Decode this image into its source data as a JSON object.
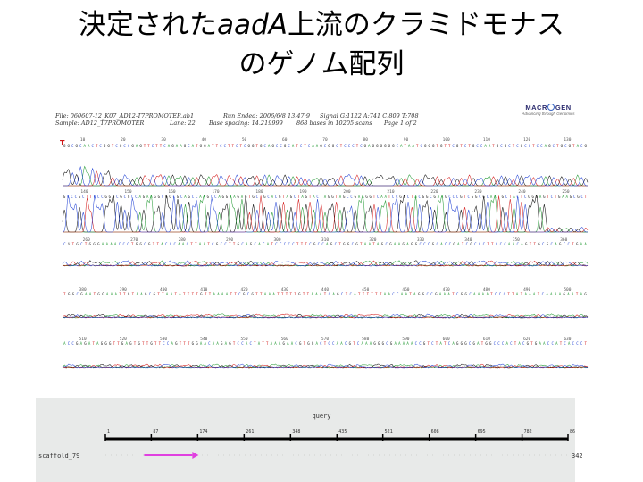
{
  "slide": {
    "title_part1": "決定された",
    "title_italic": "aadA",
    "title_part2": "上流のクラミドモナス",
    "title_line2": "のゲノム配列"
  },
  "trace": {
    "file_line": "File: 060607-12_K07_AD12-T7PROMOTER.ab1",
    "run_line": "Run Ended: 2006/6/8 13:47:9",
    "signal_line": "Signal G:1122 A:741 C:809 T:708",
    "sample_line": "Sample: AD12_T7PROMOTER",
    "lane_line": "Lane: 22",
    "spacing_line": "Base spacing: 14.219999",
    "bases_line": "868 bases in 10205 scans",
    "page_line": "Page 1 of 2",
    "logo_text": "MACROGEN",
    "logo_tagline": "Advancing through Genomics",
    "strand": "T",
    "rows": [
      {
        "seq": "GGCGCAACTCGGTCGCCGAGTTCTTCAGAAGCATGGATTCCTTCTCGGTGCAGCCGCATCTCAAGCGGCTCCCTCGAGGGGGGCATAATCGGGTGTTCGTCTGCCAATGCGCTCGCCTCCAGCTGCGTACG",
        "ticks": [
          "10",
          "20",
          "30",
          "40",
          "50",
          "60",
          "70",
          "80",
          "90",
          "100",
          "110",
          "120",
          "130"
        ]
      },
      {
        "seq": "GCCCGCTTCCCGGGCGCGCCAGAAGGCGGCGCAGCCAAGCCAGGAAGAGTGCTGCACGTAGCTAGTACTAGGTAGCCGAAGGTCAATCCGGCTACGGCGAAGCCCGTCGGCGCAATGCTACTCGGGAGTCTGAAGCGCT",
        "ticks": [
          "140",
          "150",
          "160",
          "170",
          "180",
          "190",
          "200",
          "210",
          "220",
          "230",
          "240",
          "250"
        ]
      },
      {
        "seq": "CNTGCTGGGAAAACCCTGGCGTTACCCAACTTAATCGCCTTGCAGCACATCCCCCTTTCGCCAGCTGGCGTAATAGCGAAGAGGCCCGCACCGATCGCCCTTCCCAACAGTTGCGCAGCCTGAA",
        "ticks": [
          "260",
          "270",
          "280",
          "290",
          "300",
          "310",
          "320",
          "330",
          "340",
          "350",
          "360"
        ]
      },
      {
        "seq": "TGGCGAATGGAAATTGTAAGCGTTAATATTTTGTTAAAATTCGCGTTAAATTTTTGTTAAATCAGCTCATTTTTTAACCAATAGGCCGAAATCGGCAAAATCCCTTATAAATCAAAAGAATAG",
        "ticks": [
          "380",
          "390",
          "400",
          "410",
          "420",
          "430",
          "440",
          "450",
          "460",
          "470",
          "480",
          "490",
          "500"
        ]
      },
      {
        "seq": "ACCGAGATAGGGTTGAGTGTTGTTCCAGTTTGGAACAAGAGTCCACTATTAAAGAACGTGGACTCCAACGTCAAAGGGCGAAAAACCGTCTATCAGGGCGATGGCCCACTACGTGAACCATCACCCT",
        "ticks": [
          "510",
          "520",
          "530",
          "540",
          "550",
          "560",
          "570",
          "580",
          "590",
          "600",
          "610",
          "620",
          "630"
        ]
      }
    ]
  },
  "alignment": {
    "query_label": "query",
    "ticks": [
      "1",
      "87",
      "174",
      "261",
      "348",
      "435",
      "521",
      "608",
      "695",
      "782",
      "868"
    ],
    "subject_name": "scaffold_79",
    "subject_end": "342",
    "hit_range": [
      87,
      174
    ],
    "hit_color": "#e040e0"
  }
}
